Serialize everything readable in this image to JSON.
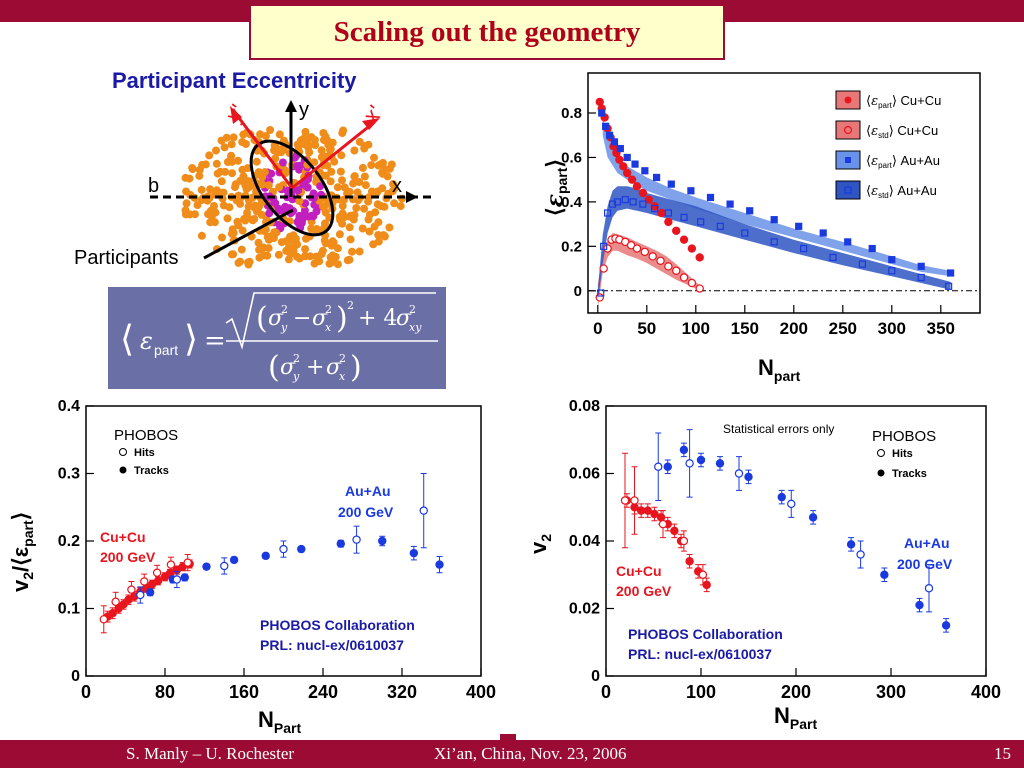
{
  "slide": {
    "title": "Scaling out the geometry",
    "footer_left": "S. Manly – U. Rochester",
    "footer_center": "Xi’an, China, Nov. 23, 2006",
    "page_number": "15",
    "colors": {
      "bar": "#9b0b33",
      "title_bg": "#ffffcc",
      "title_text": "#b0001a"
    }
  },
  "eccentricity_panel": {
    "title": "Participant Eccentricity",
    "labels": {
      "y_prime": "y'",
      "x_prime": "x'",
      "y": "y",
      "x": "x",
      "b": "b",
      "participants": "Participants"
    },
    "formula": {
      "lhs": "ε",
      "lhs_sub": "part",
      "equals": "=",
      "sigma": "σ",
      "sub_x": "x",
      "sub_y": "y",
      "sub_xy": "xy",
      "plus4": "+ 4",
      "minus": "−",
      "plus": "+",
      "two": "2"
    }
  },
  "chart_data": [
    {
      "type": "scatter",
      "title": "",
      "xlabel": "N",
      "xlabel_sub": "part",
      "ylabel": "ε",
      "ylabel_sub": "part",
      "xlim": [
        -10,
        390
      ],
      "ylim": [
        -0.1,
        0.98
      ],
      "xticks": [
        0,
        50,
        100,
        150,
        200,
        250,
        300,
        350
      ],
      "yticks": [
        0,
        0.2,
        0.4,
        0.6,
        0.8
      ],
      "legend_position": "top-right",
      "legend": [
        {
          "symbol": "ε",
          "sub": "part",
          "system": "Cu+Cu",
          "marker": "filled-circle",
          "color": "#e8141e"
        },
        {
          "symbol": "ε",
          "sub": "std",
          "system": "Cu+Cu",
          "marker": "open-circle",
          "color": "#e8141e"
        },
        {
          "symbol": "ε",
          "sub": "part",
          "system": "Au+Au",
          "marker": "filled-square",
          "color": "#1a3ae0"
        },
        {
          "symbol": "ε",
          "sub": "std",
          "system": "Au+Au",
          "marker": "open-square",
          "color": "#1a3ae0"
        }
      ],
      "bands": [
        {
          "name": "Cu+Cu std",
          "color": "#e87878",
          "x": [
            0,
            5,
            10,
            15,
            20,
            30,
            40,
            50,
            60,
            70,
            80,
            90,
            100,
            108
          ],
          "upper": [
            0.03,
            0.17,
            0.23,
            0.26,
            0.255,
            0.24,
            0.22,
            0.2,
            0.18,
            0.155,
            0.12,
            0.08,
            0.04,
            0.01
          ],
          "lower": [
            -0.08,
            0.08,
            0.15,
            0.18,
            0.18,
            0.16,
            0.145,
            0.125,
            0.1,
            0.075,
            0.05,
            0.03,
            0.01,
            -0.005
          ]
        },
        {
          "name": "Au+Au part",
          "color": "#6a92e8",
          "x": [
            5,
            10,
            20,
            30,
            50,
            75,
            100,
            150,
            200,
            250,
            300,
            330,
            360
          ],
          "upper": [
            0.78,
            0.7,
            0.6,
            0.56,
            0.51,
            0.46,
            0.42,
            0.35,
            0.28,
            0.22,
            0.155,
            0.115,
            0.09
          ],
          "lower": [
            0.7,
            0.6,
            0.53,
            0.5,
            0.45,
            0.41,
            0.37,
            0.3,
            0.24,
            0.18,
            0.12,
            0.085,
            0.065
          ]
        },
        {
          "name": "Au+Au std",
          "color": "#2f55c2",
          "x": [
            0,
            5,
            10,
            15,
            20,
            30,
            40,
            50,
            75,
            100,
            150,
            200,
            250,
            300,
            330,
            360
          ],
          "upper": [
            0.0,
            0.25,
            0.38,
            0.45,
            0.47,
            0.47,
            0.46,
            0.44,
            0.41,
            0.38,
            0.3,
            0.23,
            0.17,
            0.11,
            0.075,
            0.04
          ],
          "lower": [
            -0.05,
            0.12,
            0.26,
            0.33,
            0.36,
            0.37,
            0.36,
            0.35,
            0.32,
            0.29,
            0.23,
            0.17,
            0.115,
            0.065,
            0.035,
            0.005
          ]
        }
      ],
      "series": [
        {
          "name": "Cu+Cu part",
          "marker": "filled-circle",
          "color": "#e8141e",
          "x": [
            2,
            4,
            7,
            10,
            13,
            16,
            19,
            22,
            26,
            30,
            35,
            40,
            46,
            52,
            58,
            65,
            72,
            80,
            88,
            96,
            104
          ],
          "y": [
            0.85,
            0.82,
            0.78,
            0.73,
            0.69,
            0.65,
            0.62,
            0.59,
            0.56,
            0.53,
            0.5,
            0.47,
            0.44,
            0.41,
            0.38,
            0.35,
            0.31,
            0.27,
            0.23,
            0.19,
            0.15
          ]
        },
        {
          "name": "Cu+Cu std",
          "marker": "open-circle",
          "color": "#e8141e",
          "x": [
            2,
            6,
            10,
            14,
            18,
            22,
            28,
            34,
            40,
            48,
            56,
            64,
            72,
            80,
            88,
            96,
            104
          ],
          "y": [
            -0.03,
            0.1,
            0.19,
            0.23,
            0.235,
            0.23,
            0.22,
            0.205,
            0.19,
            0.175,
            0.155,
            0.135,
            0.11,
            0.09,
            0.06,
            0.035,
            0.01
          ]
        },
        {
          "name": "Au+Au part",
          "marker": "filled-square",
          "color": "#1a3ae0",
          "x": [
            4,
            8,
            12,
            17,
            23,
            30,
            38,
            48,
            60,
            75,
            95,
            115,
            135,
            155,
            180,
            205,
            230,
            255,
            280,
            300,
            330,
            360
          ],
          "y": [
            0.8,
            0.74,
            0.7,
            0.67,
            0.64,
            0.6,
            0.57,
            0.54,
            0.51,
            0.48,
            0.45,
            0.42,
            0.39,
            0.36,
            0.32,
            0.29,
            0.26,
            0.22,
            0.19,
            0.14,
            0.11,
            0.08
          ]
        },
        {
          "name": "Au+Au std",
          "marker": "open-square",
          "color": "#1a3ae0",
          "x": [
            3,
            6,
            10,
            15,
            20,
            28,
            36,
            46,
            58,
            72,
            88,
            105,
            125,
            150,
            180,
            210,
            240,
            270,
            300,
            330,
            358
          ],
          "y": [
            -0.01,
            0.2,
            0.35,
            0.39,
            0.4,
            0.41,
            0.4,
            0.39,
            0.37,
            0.35,
            0.33,
            0.31,
            0.29,
            0.26,
            0.22,
            0.19,
            0.15,
            0.12,
            0.09,
            0.06,
            0.02
          ]
        }
      ]
    },
    {
      "type": "scatter",
      "title": "",
      "xlabel": "N",
      "xlabel_sub": "Part",
      "ylabel": "v",
      "ylabel_sub": "2",
      "ylabel_rest": "/⟨ε",
      "ylabel_sub2": "part",
      "xlim": [
        0,
        400
      ],
      "ylim": [
        0,
        0.4
      ],
      "xticks": [
        0,
        80,
        160,
        240,
        320,
        400
      ],
      "yticks": [
        0,
        0.1,
        0.2,
        0.3,
        0.4
      ],
      "legend_title": "PHOBOS",
      "legend": [
        {
          "label": "Hits",
          "marker": "open-circle"
        },
        {
          "label": "Tracks",
          "marker": "filled-circle"
        }
      ],
      "annotations": {
        "auau": [
          "Au+Au",
          "200 GeV"
        ],
        "cucu": [
          "Cu+Cu",
          "200 GeV"
        ],
        "collab": [
          "PHOBOS Collaboration",
          "PRL: nucl-ex/0610037"
        ]
      },
      "series": [
        {
          "name": "Cu+Cu tracks",
          "marker": "filled-circle",
          "color": "#e8141e",
          "x": [
            22,
            27,
            33,
            38,
            43,
            49,
            55,
            61,
            67,
            73,
            80,
            85,
            92,
            98,
            105
          ],
          "y": [
            0.088,
            0.093,
            0.1,
            0.106,
            0.113,
            0.118,
            0.125,
            0.13,
            0.136,
            0.141,
            0.147,
            0.152,
            0.157,
            0.162,
            0.166
          ],
          "err": [
            0.008,
            0.008,
            0.007,
            0.007,
            0.007,
            0.007,
            0.006,
            0.006,
            0.006,
            0.006,
            0.006,
            0.006,
            0.006,
            0.006,
            0.006
          ]
        },
        {
          "name": "Cu+Cu hits",
          "marker": "open-circle",
          "color": "#e8141e",
          "x": [
            18,
            30,
            46,
            59,
            72,
            86,
            103
          ],
          "y": [
            0.084,
            0.11,
            0.128,
            0.14,
            0.153,
            0.165,
            0.168
          ],
          "err": [
            0.02,
            0.014,
            0.012,
            0.011,
            0.011,
            0.011,
            0.012
          ]
        },
        {
          "name": "Au+Au tracks",
          "marker": "filled-circle",
          "color": "#1a3ae0",
          "x": [
            65,
            88,
            100,
            122,
            150,
            182,
            218,
            258,
            300,
            332,
            358
          ],
          "y": [
            0.124,
            0.143,
            0.146,
            0.162,
            0.172,
            0.178,
            0.188,
            0.196,
            0.2,
            0.182,
            0.165
          ],
          "err": [
            0.005,
            0.005,
            0.005,
            0.004,
            0.004,
            0.004,
            0.004,
            0.005,
            0.007,
            0.01,
            0.012
          ]
        },
        {
          "name": "Au+Au hits",
          "marker": "open-circle",
          "color": "#1a3ae0",
          "x": [
            55,
            92,
            140,
            200,
            274,
            342
          ],
          "y": [
            0.12,
            0.143,
            0.163,
            0.188,
            0.202,
            0.245
          ],
          "err": [
            0.012,
            0.012,
            0.012,
            0.012,
            0.02,
            0.055
          ]
        }
      ]
    },
    {
      "type": "scatter",
      "title": "",
      "xlabel": "N",
      "xlabel_sub": "Part",
      "ylabel": "v",
      "ylabel_sub": "2",
      "xlim": [
        0,
        400
      ],
      "ylim": [
        0,
        0.08
      ],
      "xticks": [
        0,
        100,
        200,
        300,
        400
      ],
      "yticks": [
        0,
        0.02,
        0.04,
        0.06,
        0.08
      ],
      "note": "Statistical errors only",
      "legend_title": "PHOBOS",
      "legend": [
        {
          "label": "Hits",
          "marker": "open-circle"
        },
        {
          "label": "Tracks",
          "marker": "filled-circle"
        }
      ],
      "annotations": {
        "auau": [
          "Au+Au",
          "200 GeV"
        ],
        "cucu": [
          "Cu+Cu",
          "200 GeV"
        ],
        "collab": [
          "PHOBOS Collaboration",
          "PRL: nucl-ex/0610037"
        ]
      },
      "series": [
        {
          "name": "Cu+Cu tracks",
          "marker": "filled-circle",
          "color": "#e8141e",
          "x": [
            22,
            30,
            37,
            44,
            51,
            58,
            65,
            72,
            79,
            88,
            97,
            106
          ],
          "y": [
            0.052,
            0.05,
            0.049,
            0.049,
            0.048,
            0.047,
            0.045,
            0.043,
            0.04,
            0.034,
            0.031,
            0.027
          ],
          "err": [
            0.002,
            0.002,
            0.002,
            0.002,
            0.002,
            0.002,
            0.002,
            0.002,
            0.002,
            0.002,
            0.002,
            0.002
          ]
        },
        {
          "name": "Cu+Cu hits",
          "marker": "open-circle",
          "color": "#e8141e",
          "x": [
            20,
            30,
            60,
            82,
            102
          ],
          "y": [
            0.052,
            0.052,
            0.045,
            0.04,
            0.03
          ],
          "err": [
            0.014,
            0.01,
            0.004,
            0.003,
            0.003
          ]
        },
        {
          "name": "Au+Au tracks",
          "marker": "filled-circle",
          "color": "#1a3ae0",
          "x": [
            65,
            82,
            100,
            120,
            150,
            185,
            218,
            258,
            293,
            330,
            358
          ],
          "y": [
            0.062,
            0.067,
            0.064,
            0.063,
            0.059,
            0.053,
            0.047,
            0.039,
            0.03,
            0.021,
            0.015
          ],
          "err": [
            0.002,
            0.002,
            0.002,
            0.002,
            0.002,
            0.002,
            0.002,
            0.002,
            0.002,
            0.002,
            0.002
          ]
        },
        {
          "name": "Au+Au hits",
          "marker": "open-circle",
          "color": "#1a3ae0",
          "x": [
            55,
            88,
            140,
            195,
            268,
            340
          ],
          "y": [
            0.062,
            0.063,
            0.06,
            0.051,
            0.036,
            0.026
          ],
          "err": [
            0.01,
            0.01,
            0.005,
            0.004,
            0.004,
            0.007
          ]
        }
      ]
    }
  ]
}
